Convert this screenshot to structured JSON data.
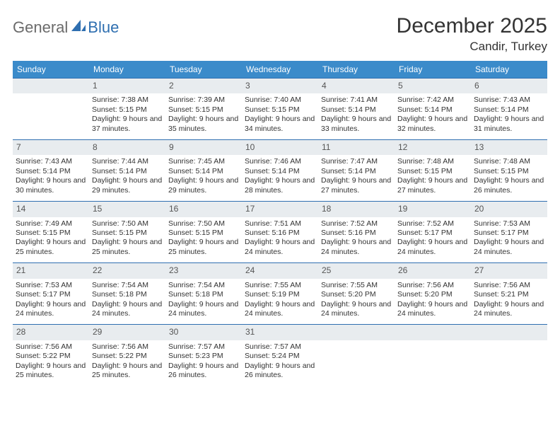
{
  "logo": {
    "part1": "General",
    "part2": "Blue"
  },
  "title": "December 2025",
  "location": "Candir, Turkey",
  "colors": {
    "header_bg": "#3b8bca",
    "header_text": "#ffffff",
    "daynum_bg": "#e8ecef",
    "cell_border": "#2f6fb0",
    "logo_gray": "#6b6b6b",
    "logo_blue": "#2f6fb0"
  },
  "day_headers": [
    "Sunday",
    "Monday",
    "Tuesday",
    "Wednesday",
    "Thursday",
    "Friday",
    "Saturday"
  ],
  "weeks": [
    [
      null,
      {
        "n": "1",
        "sr": "Sunrise: 7:38 AM",
        "ss": "Sunset: 5:15 PM",
        "dl": "Daylight: 9 hours and 37 minutes."
      },
      {
        "n": "2",
        "sr": "Sunrise: 7:39 AM",
        "ss": "Sunset: 5:15 PM",
        "dl": "Daylight: 9 hours and 35 minutes."
      },
      {
        "n": "3",
        "sr": "Sunrise: 7:40 AM",
        "ss": "Sunset: 5:15 PM",
        "dl": "Daylight: 9 hours and 34 minutes."
      },
      {
        "n": "4",
        "sr": "Sunrise: 7:41 AM",
        "ss": "Sunset: 5:14 PM",
        "dl": "Daylight: 9 hours and 33 minutes."
      },
      {
        "n": "5",
        "sr": "Sunrise: 7:42 AM",
        "ss": "Sunset: 5:14 PM",
        "dl": "Daylight: 9 hours and 32 minutes."
      },
      {
        "n": "6",
        "sr": "Sunrise: 7:43 AM",
        "ss": "Sunset: 5:14 PM",
        "dl": "Daylight: 9 hours and 31 minutes."
      }
    ],
    [
      {
        "n": "7",
        "sr": "Sunrise: 7:43 AM",
        "ss": "Sunset: 5:14 PM",
        "dl": "Daylight: 9 hours and 30 minutes."
      },
      {
        "n": "8",
        "sr": "Sunrise: 7:44 AM",
        "ss": "Sunset: 5:14 PM",
        "dl": "Daylight: 9 hours and 29 minutes."
      },
      {
        "n": "9",
        "sr": "Sunrise: 7:45 AM",
        "ss": "Sunset: 5:14 PM",
        "dl": "Daylight: 9 hours and 29 minutes."
      },
      {
        "n": "10",
        "sr": "Sunrise: 7:46 AM",
        "ss": "Sunset: 5:14 PM",
        "dl": "Daylight: 9 hours and 28 minutes."
      },
      {
        "n": "11",
        "sr": "Sunrise: 7:47 AM",
        "ss": "Sunset: 5:14 PM",
        "dl": "Daylight: 9 hours and 27 minutes."
      },
      {
        "n": "12",
        "sr": "Sunrise: 7:48 AM",
        "ss": "Sunset: 5:15 PM",
        "dl": "Daylight: 9 hours and 27 minutes."
      },
      {
        "n": "13",
        "sr": "Sunrise: 7:48 AM",
        "ss": "Sunset: 5:15 PM",
        "dl": "Daylight: 9 hours and 26 minutes."
      }
    ],
    [
      {
        "n": "14",
        "sr": "Sunrise: 7:49 AM",
        "ss": "Sunset: 5:15 PM",
        "dl": "Daylight: 9 hours and 25 minutes."
      },
      {
        "n": "15",
        "sr": "Sunrise: 7:50 AM",
        "ss": "Sunset: 5:15 PM",
        "dl": "Daylight: 9 hours and 25 minutes."
      },
      {
        "n": "16",
        "sr": "Sunrise: 7:50 AM",
        "ss": "Sunset: 5:15 PM",
        "dl": "Daylight: 9 hours and 25 minutes."
      },
      {
        "n": "17",
        "sr": "Sunrise: 7:51 AM",
        "ss": "Sunset: 5:16 PM",
        "dl": "Daylight: 9 hours and 24 minutes."
      },
      {
        "n": "18",
        "sr": "Sunrise: 7:52 AM",
        "ss": "Sunset: 5:16 PM",
        "dl": "Daylight: 9 hours and 24 minutes."
      },
      {
        "n": "19",
        "sr": "Sunrise: 7:52 AM",
        "ss": "Sunset: 5:17 PM",
        "dl": "Daylight: 9 hours and 24 minutes."
      },
      {
        "n": "20",
        "sr": "Sunrise: 7:53 AM",
        "ss": "Sunset: 5:17 PM",
        "dl": "Daylight: 9 hours and 24 minutes."
      }
    ],
    [
      {
        "n": "21",
        "sr": "Sunrise: 7:53 AM",
        "ss": "Sunset: 5:17 PM",
        "dl": "Daylight: 9 hours and 24 minutes."
      },
      {
        "n": "22",
        "sr": "Sunrise: 7:54 AM",
        "ss": "Sunset: 5:18 PM",
        "dl": "Daylight: 9 hours and 24 minutes."
      },
      {
        "n": "23",
        "sr": "Sunrise: 7:54 AM",
        "ss": "Sunset: 5:18 PM",
        "dl": "Daylight: 9 hours and 24 minutes."
      },
      {
        "n": "24",
        "sr": "Sunrise: 7:55 AM",
        "ss": "Sunset: 5:19 PM",
        "dl": "Daylight: 9 hours and 24 minutes."
      },
      {
        "n": "25",
        "sr": "Sunrise: 7:55 AM",
        "ss": "Sunset: 5:20 PM",
        "dl": "Daylight: 9 hours and 24 minutes."
      },
      {
        "n": "26",
        "sr": "Sunrise: 7:56 AM",
        "ss": "Sunset: 5:20 PM",
        "dl": "Daylight: 9 hours and 24 minutes."
      },
      {
        "n": "27",
        "sr": "Sunrise: 7:56 AM",
        "ss": "Sunset: 5:21 PM",
        "dl": "Daylight: 9 hours and 24 minutes."
      }
    ],
    [
      {
        "n": "28",
        "sr": "Sunrise: 7:56 AM",
        "ss": "Sunset: 5:22 PM",
        "dl": "Daylight: 9 hours and 25 minutes."
      },
      {
        "n": "29",
        "sr": "Sunrise: 7:56 AM",
        "ss": "Sunset: 5:22 PM",
        "dl": "Daylight: 9 hours and 25 minutes."
      },
      {
        "n": "30",
        "sr": "Sunrise: 7:57 AM",
        "ss": "Sunset: 5:23 PM",
        "dl": "Daylight: 9 hours and 26 minutes."
      },
      {
        "n": "31",
        "sr": "Sunrise: 7:57 AM",
        "ss": "Sunset: 5:24 PM",
        "dl": "Daylight: 9 hours and 26 minutes."
      },
      null,
      null,
      null
    ]
  ]
}
